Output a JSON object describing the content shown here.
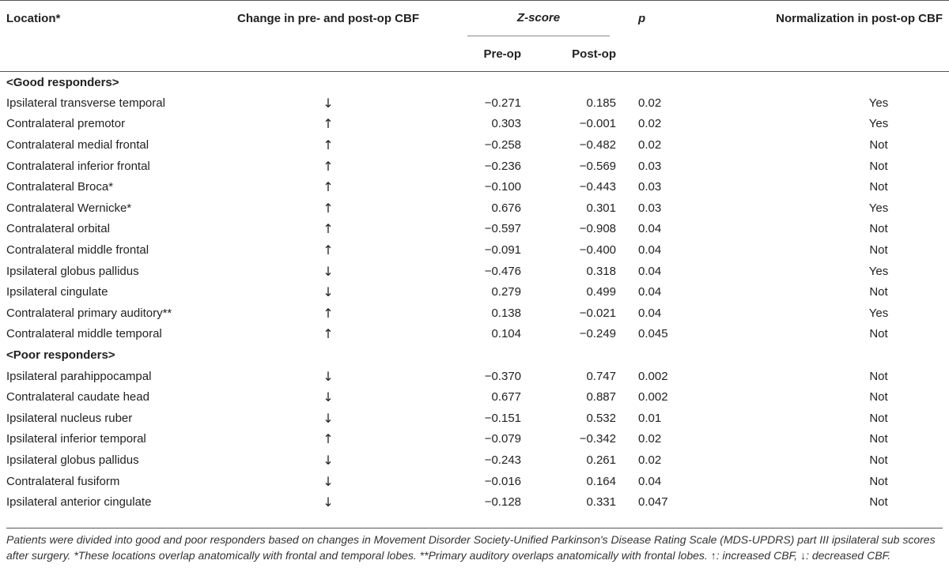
{
  "table": {
    "headers": {
      "location": "Location*",
      "change": "Change in pre- and post-op CBF",
      "zscore": "Z-score",
      "p": "p",
      "normalization": "Normalization in post-op CBF",
      "preop": "Pre-op",
      "postop": "Post-op"
    },
    "groups": [
      {
        "label": "<Good responders>",
        "rows": [
          {
            "location": "Ipsilateral transverse temporal",
            "change": "↓",
            "pre": "−0.271",
            "post": "0.185",
            "p": "0.02",
            "norm": "Yes"
          },
          {
            "location": "Contralateral premotor",
            "change": "↑",
            "pre": "0.303",
            "post": "−0.001",
            "p": "0.02",
            "norm": "Yes"
          },
          {
            "location": "Contralateral medial frontal",
            "change": "↑",
            "pre": "−0.258",
            "post": "−0.482",
            "p": "0.02",
            "norm": "Not"
          },
          {
            "location": "Contralateral inferior frontal",
            "change": "↑",
            "pre": "−0.236",
            "post": "−0.569",
            "p": "0.03",
            "norm": "Not"
          },
          {
            "location": "Contralateral Broca*",
            "change": "↑",
            "pre": "−0.100",
            "post": "−0.443",
            "p": "0.03",
            "norm": "Not"
          },
          {
            "location": "Contralateral Wernicke*",
            "change": "↑",
            "pre": "0.676",
            "post": "0.301",
            "p": "0.03",
            "norm": "Yes"
          },
          {
            "location": "Contralateral orbital",
            "change": "↑",
            "pre": "−0.597",
            "post": "−0.908",
            "p": "0.04",
            "norm": "Not"
          },
          {
            "location": "Contralateral middle frontal",
            "change": "↑",
            "pre": "−0.091",
            "post": "−0.400",
            "p": "0.04",
            "norm": "Not"
          },
          {
            "location": "Ipsilateral globus pallidus",
            "change": "↓",
            "pre": "−0.476",
            "post": "0.318",
            "p": "0.04",
            "norm": "Yes"
          },
          {
            "location": "Ipsilateral cingulate",
            "change": "↓",
            "pre": "0.279",
            "post": "0.499",
            "p": "0.04",
            "norm": "Not"
          },
          {
            "location": "Contralateral primary auditory**",
            "change": "↑",
            "pre": "0.138",
            "post": "−0.021",
            "p": "0.04",
            "norm": "Yes"
          },
          {
            "location": "Contralateral middle temporal",
            "change": "↑",
            "pre": "0.104",
            "post": "−0.249",
            "p": "0.045",
            "norm": "Not"
          }
        ]
      },
      {
        "label": "<Poor responders>",
        "rows": [
          {
            "location": "Ipsilateral parahippocampal",
            "change": "↓",
            "pre": "−0.370",
            "post": "0.747",
            "p": "0.002",
            "norm": "Not"
          },
          {
            "location": "Contralateral caudate head",
            "change": "↓",
            "pre": "0.677",
            "post": "0.887",
            "p": "0.002",
            "norm": "Not"
          },
          {
            "location": "Ipsilateral nucleus ruber",
            "change": "↓",
            "pre": "−0.151",
            "post": "0.532",
            "p": "0.01",
            "norm": "Not"
          },
          {
            "location": "Ipsilateral inferior temporal",
            "change": "↑",
            "pre": "−0.079",
            "post": "−0.342",
            "p": "0.02",
            "norm": "Not"
          },
          {
            "location": "Ipsilateral globus pallidus",
            "change": "↓",
            "pre": "−0.243",
            "post": "0.261",
            "p": "0.02",
            "norm": "Not"
          },
          {
            "location": "Contralateral fusiform",
            "change": "↓",
            "pre": "−0.016",
            "post": "0.164",
            "p": "0.04",
            "norm": "Not"
          },
          {
            "location": "Ipsilateral anterior cingulate",
            "change": "↓",
            "pre": "−0.128",
            "post": "0.331",
            "p": "0.047",
            "norm": "Not"
          }
        ]
      }
    ],
    "footnote": "Patients were divided into good and poor responders based on changes in Movement Disorder Society-Unified Parkinson's Disease Rating Scale (MDS-UPDRS) part III ipsilateral sub scores after surgery. *These locations overlap anatomically with frontal and temporal lobes. **Primary auditory overlaps anatomically with frontal lobes. ↑: increased CBF, ↓: decreased CBF."
  }
}
